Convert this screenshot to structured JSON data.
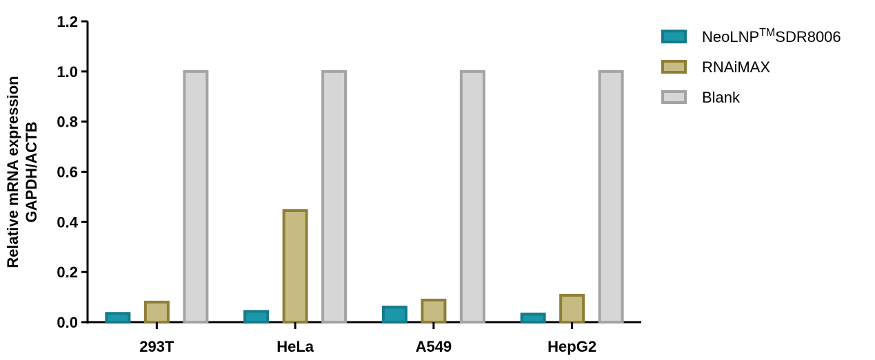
{
  "chart_data": {
    "type": "bar",
    "categories": [
      "293T",
      "HeLa",
      "A549",
      "HepG2"
    ],
    "series": [
      {
        "name": "NeoLNP",
        "name_sup": "TM",
        "name_suffix": "SDR8006",
        "values": [
          0.035,
          0.043,
          0.06,
          0.032
        ],
        "fill": "#1a97a8",
        "stroke": "#167a8a"
      },
      {
        "name": "RNAiMAX",
        "values": [
          0.08,
          0.445,
          0.088,
          0.107
        ],
        "fill": "#c6bb83",
        "stroke": "#8f7f36"
      },
      {
        "name": "Blank",
        "values": [
          1.0,
          1.0,
          1.0,
          1.0
        ],
        "fill": "#d6d6d6",
        "stroke": "#a3a3a3"
      }
    ],
    "ylabel_line1": "Relative mRNA expression",
    "ylabel_line2": "GAPDH/ACTB",
    "xlabel": "",
    "ylim": [
      0,
      1.2
    ],
    "yticks": [
      "0.0",
      "0.2",
      "0.4",
      "0.6",
      "0.8",
      "1.0",
      "1.2"
    ],
    "grid": false,
    "legend_position": "top-right"
  }
}
